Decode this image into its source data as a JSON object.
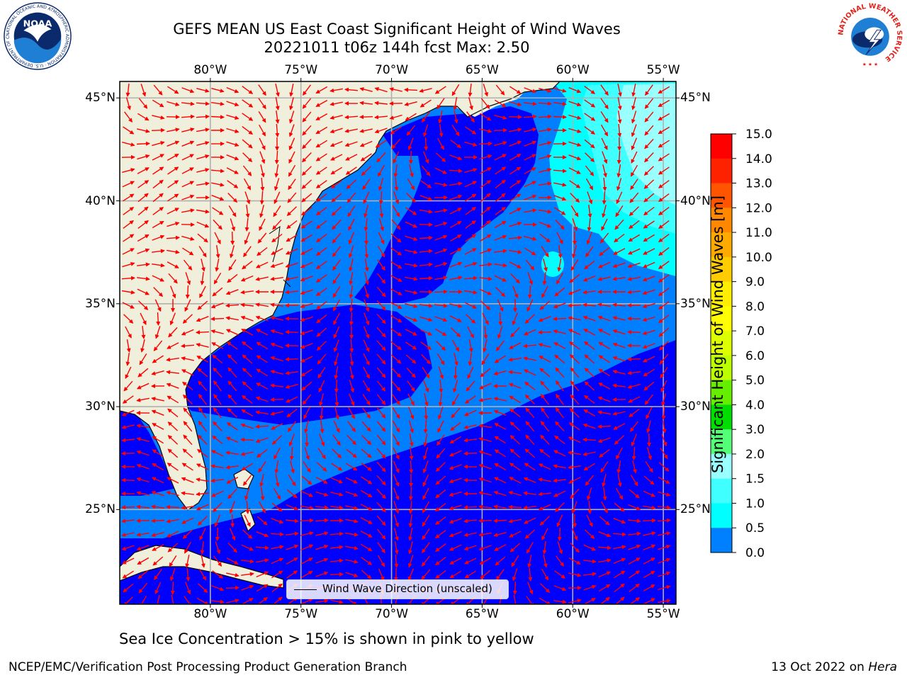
{
  "header": {
    "title_line1": "GEFS MEAN US East Coast Significant Height of Wind Waves",
    "title_line2": "20221011 t06z 144h fcst   Max: 2.50"
  },
  "map": {
    "lon_min": -85,
    "lon_max": -54.3,
    "lat_min": 20.4,
    "lat_max": 45.8,
    "x_ticks": [
      "80°W",
      "75°W",
      "70°W",
      "65°W",
      "60°W",
      "55°W"
    ],
    "y_ticks": [
      "45°N",
      "40°N",
      "35°N",
      "30°N",
      "25°N"
    ],
    "x_tick_values": [
      -80,
      -75,
      -70,
      -65,
      -60,
      -55
    ],
    "y_tick_values": [
      45,
      40,
      35,
      30,
      25
    ],
    "colors": {
      "land": "#efefdc",
      "band_0": "#0000fe",
      "band_05": "#0080fe",
      "band_10": "#00ffff",
      "band_15": "#40ffff",
      "band_20": "#99ffff",
      "arrow": "#ff0000",
      "grid": "#b0b0b0"
    }
  },
  "colorbar": {
    "label": "Significant Height of Wind Waves [m]",
    "ticks": [
      "15.0",
      "14.0",
      "13.0",
      "12.0",
      "11.0",
      "10.0",
      "9.0",
      "8.0",
      "7.0",
      "6.0",
      "5.0",
      "4.0",
      "3.0",
      "2.0",
      "1.5",
      "1.0",
      "0.5",
      "0.0"
    ],
    "colors": [
      "#ff0000",
      "#ff2200",
      "#ff5500",
      "#ff8800",
      "#ffaa00",
      "#ffcc00",
      "#ffee00",
      "#ffff00",
      "#ddff00",
      "#bbff00",
      "#66ee00",
      "#00dd00",
      "#55ff77",
      "#99ffff",
      "#40ffff",
      "#00ffff",
      "#0080fe",
      "#0000fe"
    ]
  },
  "legend": {
    "label": "Wind Wave Direction (unscaled)"
  },
  "caption": "Sea Ice Concentration > 15% is shown in pink to yellow",
  "footer": {
    "left": "NCEP/EMC/Verification Post Processing Product Generation Branch",
    "right_prefix": "13 Oct 2022 on",
    "right_host": "Hera"
  },
  "logos": {
    "noaa_text": "NOAA",
    "noaa_ring": "NATIONAL OCEANIC AND ATMOSPHERIC ADMINISTRATION · U.S. DEPARTMENT OF COMMERCE",
    "nws_ring": "NATIONAL WEATHER SERVICE"
  }
}
